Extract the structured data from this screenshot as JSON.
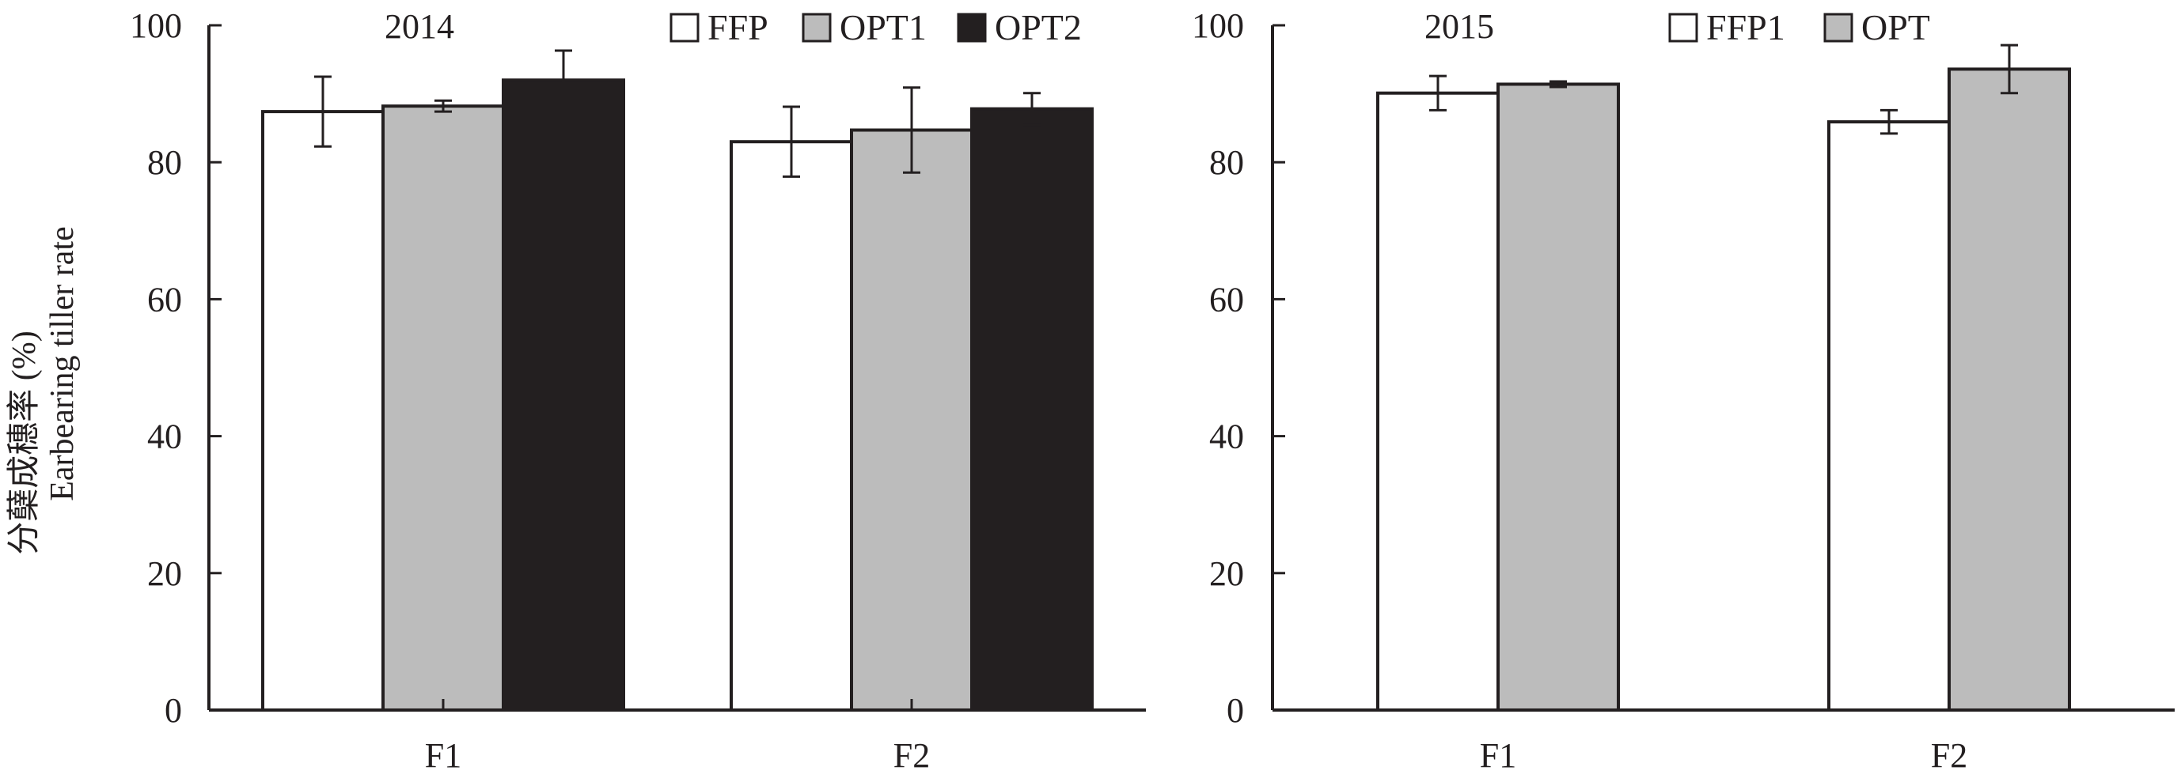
{
  "ylabel": {
    "line1": "分蘖成穗率 (%)",
    "line2": "Earbearing tiller rate"
  },
  "chart_data": [
    {
      "type": "bar",
      "title": "2014",
      "categories": [
        "F1",
        "F2"
      ],
      "ylim": [
        0,
        100
      ],
      "yticks": [
        0,
        20,
        40,
        60,
        80,
        100
      ],
      "legend_position": "top-right",
      "series": [
        {
          "name": "FFP",
          "color": "#ffffff",
          "values": [
            87.4,
            83.0
          ],
          "errors": [
            5.1,
            5.1
          ]
        },
        {
          "name": "OPT1",
          "color": "#bcbcbc",
          "values": [
            88.2,
            84.7
          ],
          "errors": [
            0.8,
            6.2
          ]
        },
        {
          "name": "OPT2",
          "color": "#231f20",
          "values": [
            92.0,
            87.8
          ],
          "errors": [
            4.3,
            2.3
          ]
        }
      ]
    },
    {
      "type": "bar",
      "title": "2015",
      "categories": [
        "F1",
        "F2"
      ],
      "ylim": [
        0,
        100
      ],
      "yticks": [
        0,
        20,
        40,
        60,
        80,
        100
      ],
      "legend_position": "top-right",
      "series": [
        {
          "name": "FFP1",
          "color": "#ffffff",
          "values": [
            90.1,
            85.9
          ],
          "errors": [
            2.5,
            1.7
          ]
        },
        {
          "name": "OPT",
          "color": "#bcbcbc",
          "values": [
            91.4,
            93.6
          ],
          "errors": [
            0.4,
            3.5
          ]
        }
      ]
    }
  ]
}
